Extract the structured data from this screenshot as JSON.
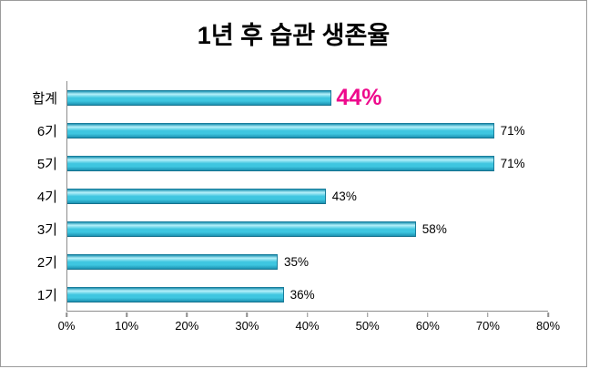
{
  "chart_data": {
    "type": "bar",
    "orientation": "horizontal",
    "title": "1년 후 습관 생존율",
    "categories": [
      "합계",
      "6기",
      "5기",
      "4기",
      "3기",
      "2기",
      "1기"
    ],
    "values": [
      44,
      71,
      71,
      43,
      58,
      35,
      36
    ],
    "value_labels": [
      "44%",
      "71%",
      "71%",
      "43%",
      "58%",
      "35%",
      "36%"
    ],
    "xlim": [
      0,
      80
    ],
    "xticks": [
      "0%",
      "10%",
      "20%",
      "30%",
      "40%",
      "50%",
      "60%",
      "70%",
      "80%"
    ],
    "highlight_index": 0,
    "grid": false,
    "legend_position": "none",
    "colors": {
      "bar": "#3ec6e0",
      "bar_dark": "#1d93b2",
      "bar_light": "#b5f0fa",
      "highlight_label": "#ee0a8c",
      "axis": "#8c8c8c",
      "text": "#000000"
    }
  }
}
